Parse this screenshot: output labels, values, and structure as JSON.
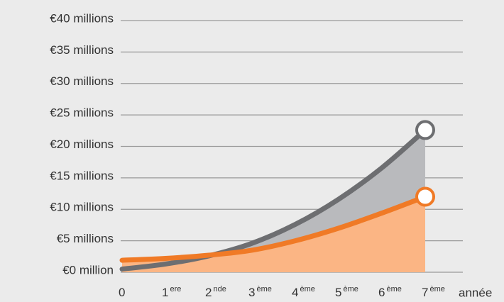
{
  "chart_data": {
    "type": "area-line",
    "x_labels": [
      {
        "main": "0"
      },
      {
        "main": "1",
        "sup": "ere"
      },
      {
        "main": "2",
        "sup": "nde"
      },
      {
        "main": "3",
        "sup": "ème"
      },
      {
        "main": "4",
        "sup": "ème"
      },
      {
        "main": "5",
        "sup": "ème"
      },
      {
        "main": "6",
        "sup": "ème"
      },
      {
        "main": "7",
        "sup": "ème"
      }
    ],
    "x_unit": "année",
    "series": [
      {
        "color": "#6d6e71",
        "fill": "#b9babd",
        "values": [
          0.5,
          1.3,
          2.6,
          4.6,
          7.6,
          11.6,
          16.6,
          22.6
        ]
      },
      {
        "color": "#f07a26",
        "fill": "#fbb584",
        "values": [
          1.9,
          2.2,
          2.7,
          3.5,
          5.0,
          7.0,
          9.4,
          12.0
        ]
      }
    ],
    "ylim": [
      0,
      40
    ],
    "yticks": [
      {
        "value": 0,
        "label": "€0 million"
      },
      {
        "value": 5,
        "label": "€5 millions"
      },
      {
        "value": 10,
        "label": "€10 millions"
      },
      {
        "value": 15,
        "label": "€15 millions"
      },
      {
        "value": 20,
        "label": "€20 millions"
      },
      {
        "value": 25,
        "label": "€25 millions"
      },
      {
        "value": 30,
        "label": "€30 millions"
      },
      {
        "value": 35,
        "label": "€35 millions"
      },
      {
        "value": 40,
        "label": "€40 millions"
      }
    ],
    "grid": true
  }
}
